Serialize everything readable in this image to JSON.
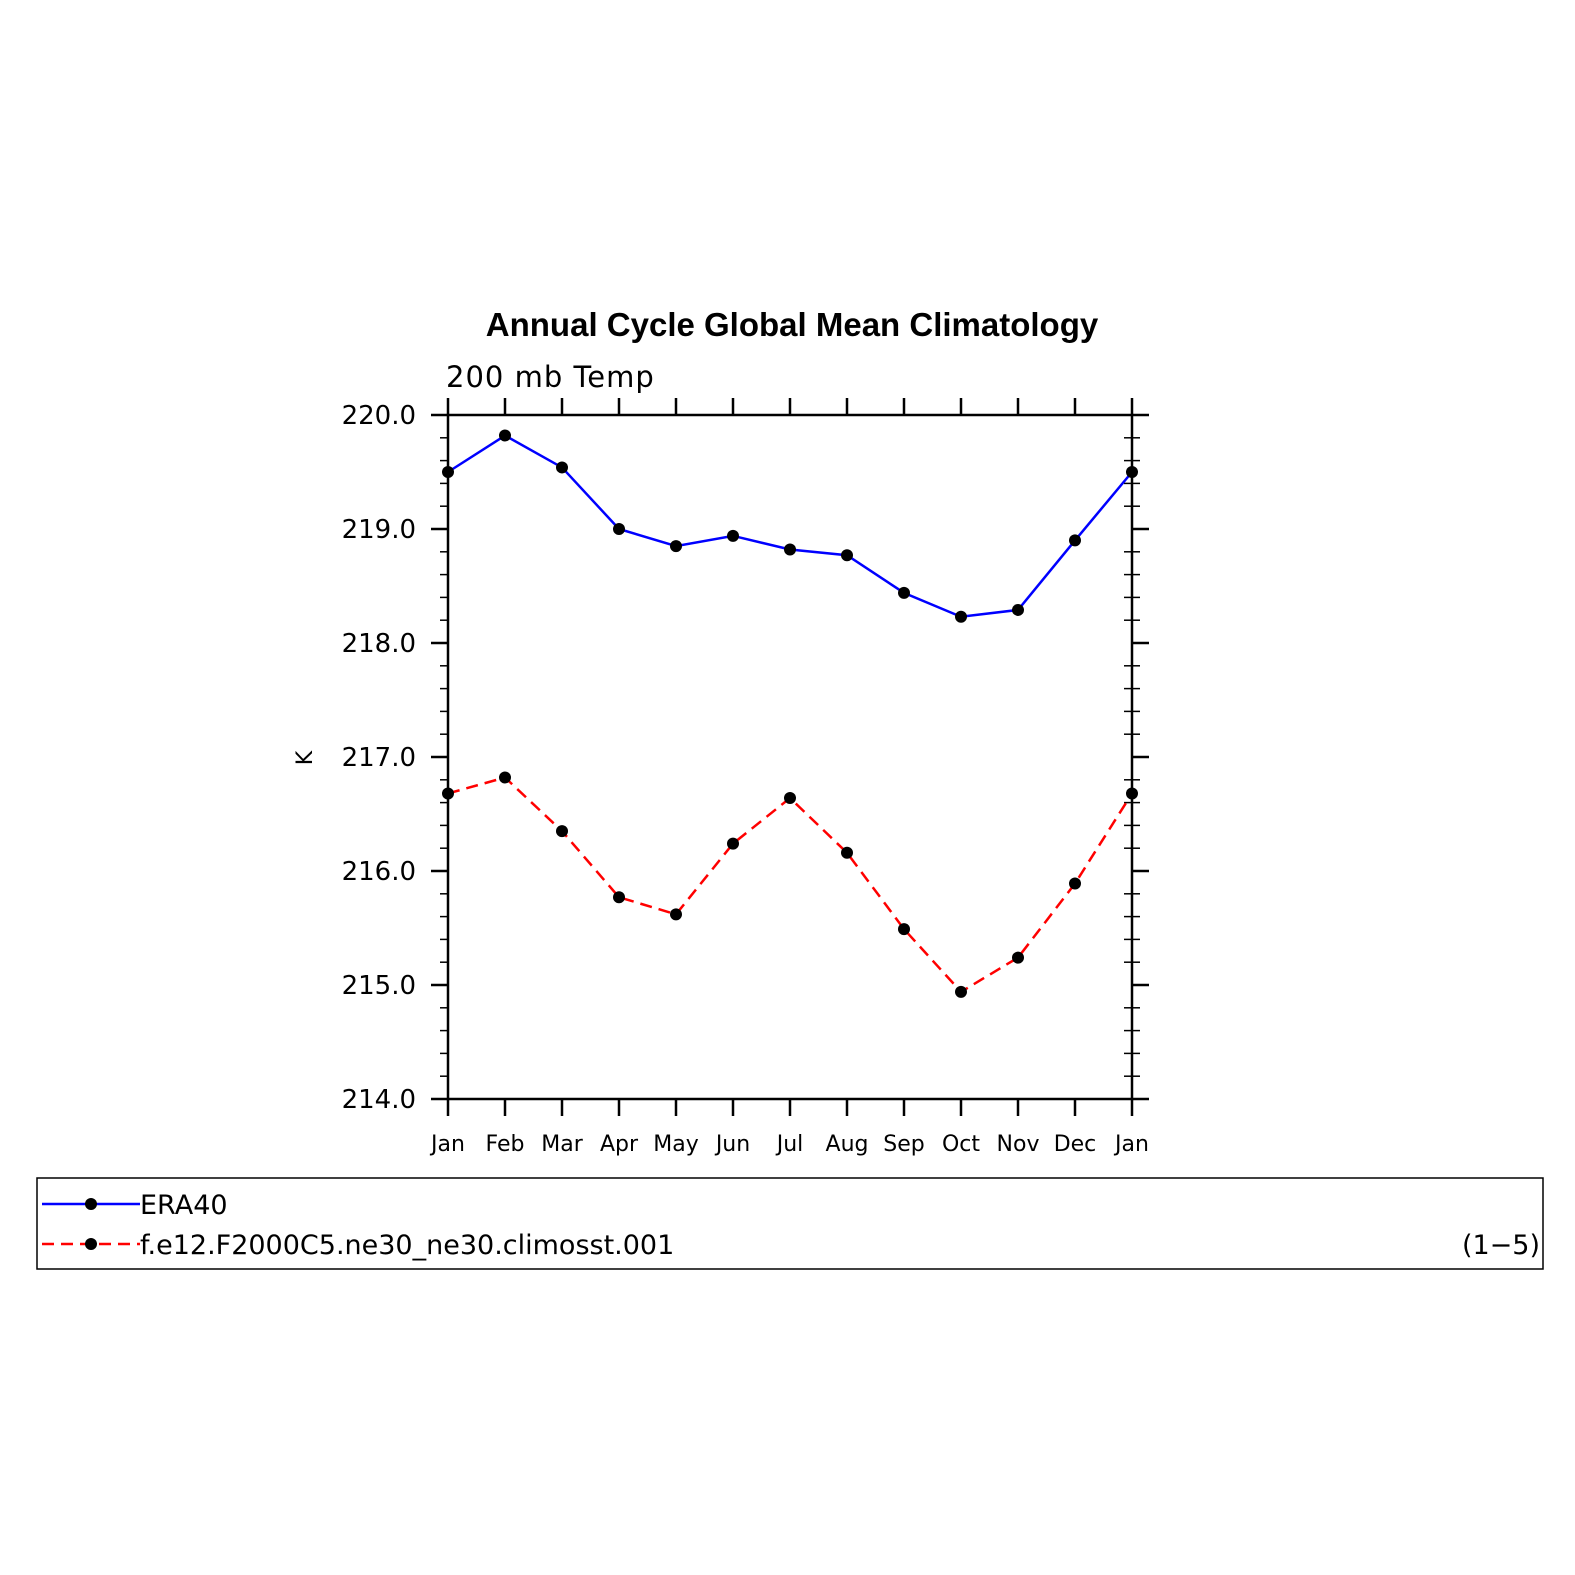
{
  "chart_data": {
    "type": "line",
    "title": "Annual Cycle Global Mean Climatology",
    "subtitle": "200 mb Temp",
    "ylabel": "K",
    "xlabel": "",
    "categories": [
      "Jan",
      "Feb",
      "Mar",
      "Apr",
      "May",
      "Jun",
      "Jul",
      "Aug",
      "Sep",
      "Oct",
      "Nov",
      "Dec",
      "Jan"
    ],
    "ylim": [
      214.0,
      220.0
    ],
    "yticks": [
      "214.0",
      "215.0",
      "216.0",
      "217.0",
      "218.0",
      "219.0",
      "220.0"
    ],
    "grid": false,
    "legend_position": "bottom",
    "series": [
      {
        "name": "ERA40",
        "color": "#0000ff",
        "dash": "solid",
        "values": [
          219.5,
          219.82,
          219.54,
          219.0,
          218.85,
          218.94,
          218.82,
          218.77,
          218.44,
          218.23,
          218.29,
          218.9,
          219.5
        ]
      },
      {
        "name": "f.e12.F2000C5.ne30_ne30.climosst.001",
        "color": "#ff0000",
        "dash": "dashed",
        "values": [
          216.68,
          216.82,
          216.35,
          215.77,
          215.62,
          216.24,
          216.64,
          216.16,
          215.49,
          214.94,
          215.24,
          215.89,
          216.68
        ]
      }
    ],
    "legend_note": "(1−5)"
  }
}
